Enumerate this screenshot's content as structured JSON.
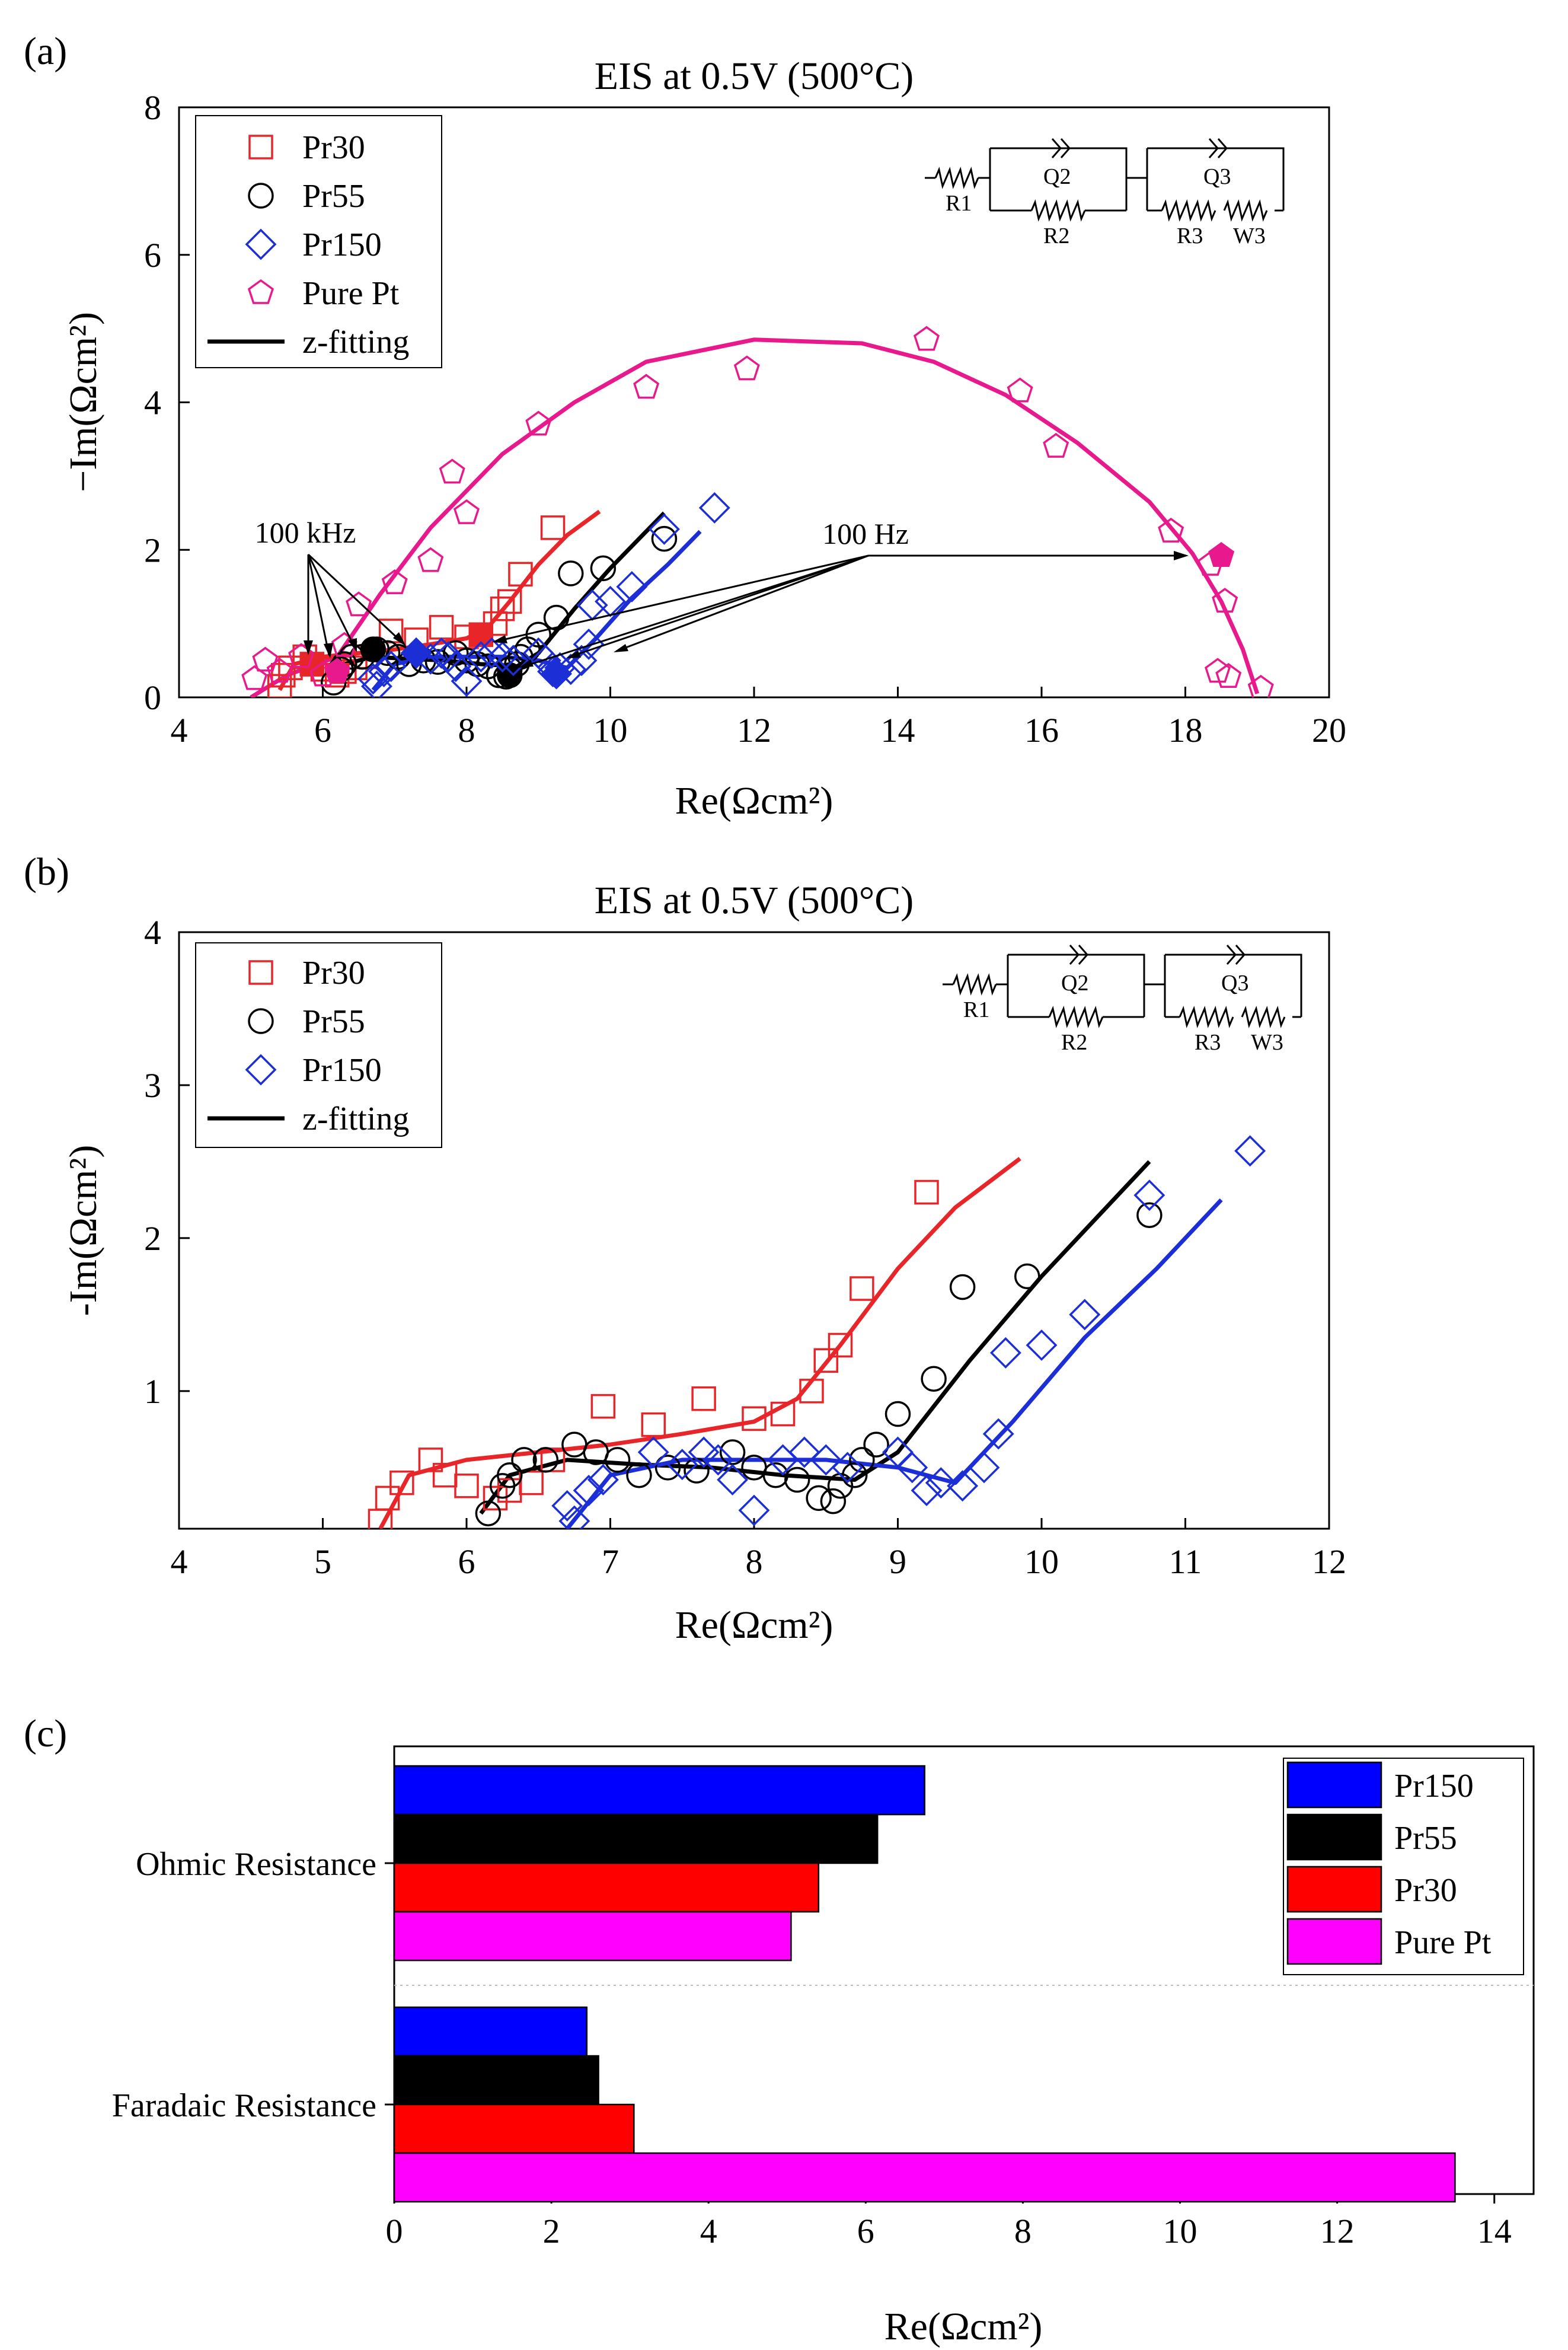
{
  "chart_data": [
    {
      "panel": "(a)",
      "type": "scatter",
      "title": "EIS at 0.5V (500°C)",
      "xlabel": "Re(Ωcm²)",
      "ylabel": "−Im(Ωcm²)",
      "xlim": [
        4,
        20
      ],
      "ylim": [
        0,
        8
      ],
      "xticks": [
        "4",
        "6",
        "8",
        "10",
        "12",
        "14",
        "16",
        "18",
        "20"
      ],
      "yticks": [
        "0",
        "2",
        "4",
        "6",
        "8"
      ],
      "legend": {
        "position": "top-left",
        "entries": [
          "Pr30",
          "Pr55",
          "Pr150",
          "Pure Pt",
          "z-fitting"
        ]
      },
      "annotations": {
        "high_freq": "100 kHz",
        "low_freq": "100 Hz"
      },
      "circuit": [
        "R1",
        "Q2",
        "R2",
        "Q3",
        "R3",
        "W3"
      ],
      "series": [
        {
          "name": "Pr30",
          "color": "#e8262a",
          "marker": "square",
          "points": [
            [
              5.4,
              0.15
            ],
            [
              5.45,
              0.3
            ],
            [
              5.55,
              0.4
            ],
            [
              5.75,
              0.55
            ],
            [
              5.85,
              0.45
            ],
            [
              6.0,
              0.38
            ],
            [
              6.2,
              0.3
            ],
            [
              6.3,
              0.35
            ],
            [
              6.45,
              0.4
            ],
            [
              6.6,
              0.55
            ],
            [
              6.95,
              0.9
            ],
            [
              7.3,
              0.78
            ],
            [
              7.65,
              0.95
            ],
            [
              8.0,
              0.82
            ],
            [
              8.2,
              0.85
            ],
            [
              8.4,
              1.0
            ],
            [
              8.5,
              1.2
            ],
            [
              8.6,
              1.3
            ],
            [
              8.75,
              1.67
            ],
            [
              9.2,
              2.3
            ]
          ],
          "filled": [
            [
              5.85,
              0.45
            ],
            [
              8.2,
              0.85
            ]
          ],
          "fit": [
            [
              5.4,
              0.1
            ],
            [
              5.6,
              0.45
            ],
            [
              6.0,
              0.55
            ],
            [
              6.5,
              0.6
            ],
            [
              7.0,
              0.65
            ],
            [
              7.5,
              0.72
            ],
            [
              8.0,
              0.8
            ],
            [
              8.3,
              0.95
            ],
            [
              8.6,
              1.3
            ],
            [
              9.0,
              1.8
            ],
            [
              9.4,
              2.2
            ],
            [
              9.85,
              2.52
            ]
          ]
        },
        {
          "name": "Pr55",
          "color": "#000000",
          "marker": "circle",
          "points": [
            [
              6.15,
              0.2
            ],
            [
              6.25,
              0.38
            ],
            [
              6.3,
              0.45
            ],
            [
              6.4,
              0.55
            ],
            [
              6.55,
              0.55
            ],
            [
              6.75,
              0.65
            ],
            [
              6.9,
              0.6
            ],
            [
              7.05,
              0.55
            ],
            [
              7.2,
              0.45
            ],
            [
              7.4,
              0.5
            ],
            [
              7.6,
              0.48
            ],
            [
              7.85,
              0.6
            ],
            [
              8.0,
              0.5
            ],
            [
              8.15,
              0.45
            ],
            [
              8.3,
              0.42
            ],
            [
              8.45,
              0.3
            ],
            [
              8.55,
              0.28
            ],
            [
              8.6,
              0.38
            ],
            [
              8.7,
              0.45
            ],
            [
              8.75,
              0.55
            ],
            [
              8.85,
              0.65
            ],
            [
              9.0,
              0.85
            ],
            [
              9.25,
              1.08
            ],
            [
              9.45,
              1.68
            ],
            [
              9.9,
              1.75
            ],
            [
              10.75,
              2.15
            ]
          ],
          "filled": [
            [
              6.7,
              0.65
            ],
            [
              8.6,
              0.3
            ]
          ],
          "fit": [
            [
              6.1,
              0.2
            ],
            [
              6.3,
              0.45
            ],
            [
              6.7,
              0.55
            ],
            [
              7.2,
              0.52
            ],
            [
              7.7,
              0.5
            ],
            [
              8.2,
              0.45
            ],
            [
              8.7,
              0.42
            ],
            [
              9.0,
              0.6
            ],
            [
              9.5,
              1.2
            ],
            [
              10.0,
              1.75
            ],
            [
              10.4,
              2.15
            ],
            [
              10.75,
              2.5
            ]
          ]
        },
        {
          "name": "Pr150",
          "color": "#1c2fd6",
          "marker": "diamond",
          "points": [
            [
              6.7,
              0.25
            ],
            [
              6.75,
              0.15
            ],
            [
              6.85,
              0.35
            ],
            [
              6.95,
              0.42
            ],
            [
              7.3,
              0.6
            ],
            [
              7.5,
              0.52
            ],
            [
              7.65,
              0.6
            ],
            [
              7.75,
              0.55
            ],
            [
              7.85,
              0.42
            ],
            [
              8.0,
              0.22
            ],
            [
              8.2,
              0.55
            ],
            [
              8.35,
              0.6
            ],
            [
              8.5,
              0.55
            ],
            [
              8.65,
              0.5
            ],
            [
              9.0,
              0.6
            ],
            [
              9.1,
              0.5
            ],
            [
              9.2,
              0.35
            ],
            [
              9.3,
              0.4
            ],
            [
              9.45,
              0.38
            ],
            [
              9.6,
              0.5
            ],
            [
              9.7,
              0.72
            ],
            [
              9.75,
              1.25
            ],
            [
              10.0,
              1.3
            ],
            [
              10.3,
              1.5
            ],
            [
              10.75,
              2.28
            ],
            [
              11.45,
              2.57
            ]
          ],
          "filled": [
            [
              7.3,
              0.6
            ],
            [
              9.25,
              0.32
            ]
          ],
          "fit": [
            [
              6.7,
              0.1
            ],
            [
              7.0,
              0.45
            ],
            [
              7.5,
              0.55
            ],
            [
              8.0,
              0.55
            ],
            [
              8.5,
              0.55
            ],
            [
              9.0,
              0.5
            ],
            [
              9.4,
              0.4
            ],
            [
              9.8,
              0.8
            ],
            [
              10.3,
              1.35
            ],
            [
              10.8,
              1.8
            ],
            [
              11.25,
              2.25
            ]
          ]
        },
        {
          "name": "Pure Pt",
          "color": "#e8198c",
          "marker": "pentagon",
          "points": [
            [
              5.05,
              0.25
            ],
            [
              5.2,
              0.5
            ],
            [
              5.4,
              0.35
            ],
            [
              5.7,
              0.55
            ],
            [
              6.0,
              0.3
            ],
            [
              6.3,
              0.7
            ],
            [
              6.5,
              1.25
            ],
            [
              7.0,
              1.55
            ],
            [
              7.5,
              1.85
            ],
            [
              7.8,
              3.05
            ],
            [
              8.0,
              2.5
            ],
            [
              9.0,
              3.7
            ],
            [
              10.5,
              4.2
            ],
            [
              11.9,
              4.45
            ],
            [
              14.4,
              4.85
            ],
            [
              15.7,
              4.15
            ],
            [
              16.2,
              3.4
            ],
            [
              17.8,
              2.25
            ],
            [
              18.35,
              1.8
            ],
            [
              18.45,
              0.35
            ],
            [
              18.55,
              1.3
            ],
            [
              18.6,
              0.28
            ],
            [
              19.05,
              0.12
            ]
          ],
          "filled": [
            [
              6.2,
              0.35
            ],
            [
              18.5,
              1.92
            ]
          ],
          "fit": [
            [
              5.0,
              0.0
            ],
            [
              5.5,
              0.3
            ],
            [
              6.2,
              0.55
            ],
            [
              6.8,
              1.4
            ],
            [
              7.5,
              2.3
            ],
            [
              8.5,
              3.3
            ],
            [
              9.5,
              4.0
            ],
            [
              10.5,
              4.55
            ],
            [
              12.0,
              4.85
            ],
            [
              13.5,
              4.8
            ],
            [
              14.5,
              4.55
            ],
            [
              15.5,
              4.1
            ],
            [
              16.5,
              3.45
            ],
            [
              17.5,
              2.65
            ],
            [
              18.1,
              1.95
            ],
            [
              18.5,
              1.3
            ],
            [
              18.8,
              0.65
            ],
            [
              19.0,
              0.05
            ]
          ]
        }
      ]
    },
    {
      "panel": "(b)",
      "type": "scatter",
      "title": "EIS at 0.5V (500°C)",
      "xlabel": "Re(Ωcm²)",
      "ylabel": "-Im(Ωcm²)",
      "xlim": [
        4,
        12
      ],
      "ylim": [
        0.1,
        4
      ],
      "xticks": [
        "4",
        "5",
        "6",
        "7",
        "8",
        "9",
        "10",
        "11",
        "12"
      ],
      "yticks": [
        "1",
        "2",
        "3",
        "4"
      ],
      "legend": {
        "position": "top-left",
        "entries": [
          "Pr30",
          "Pr55",
          "Pr150",
          "z-fitting"
        ]
      },
      "circuit": [
        "R1",
        "Q2",
        "R2",
        "Q3",
        "R3",
        "W3"
      ],
      "series_ref": [
        "Pr30",
        "Pr55",
        "Pr150"
      ]
    },
    {
      "panel": "(c)",
      "type": "bar",
      "orientation": "horizontal",
      "xlabel": "Re(Ωcm²)",
      "xlim": [
        0,
        14.5
      ],
      "xticks": [
        "0",
        "2",
        "4",
        "6",
        "8",
        "10",
        "12",
        "14"
      ],
      "categories": [
        "Ohmic Resistance",
        "Faradaic Resistance"
      ],
      "legend": {
        "position": "top-right",
        "entries": [
          "Pr150",
          "Pr55",
          "Pr30",
          "Pure Pt"
        ]
      },
      "series": [
        {
          "name": "Pr150",
          "color": "#0000ff",
          "values": [
            6.75,
            2.45
          ]
        },
        {
          "name": "Pr55",
          "color": "#000000",
          "values": [
            6.15,
            2.6
          ]
        },
        {
          "name": "Pr30",
          "color": "#ff0000",
          "values": [
            5.4,
            3.05
          ]
        },
        {
          "name": "Pure Pt",
          "color": "#ff00ff",
          "values": [
            5.05,
            13.5
          ]
        }
      ]
    }
  ]
}
